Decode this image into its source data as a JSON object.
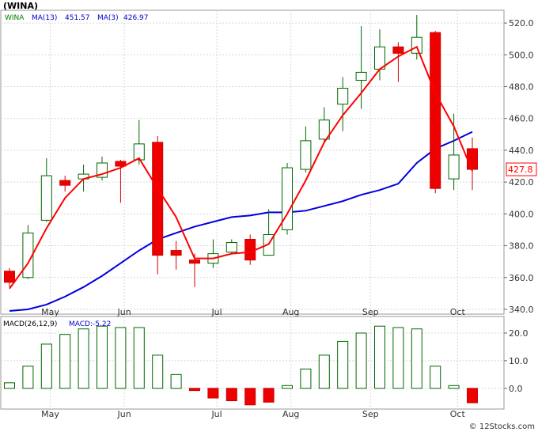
{
  "chart_data": [
    {
      "type": "candlestick",
      "title": "(WINA)",
      "legend": [
        {
          "label": "WINA",
          "color": "#008000"
        },
        {
          "label": "MA(13)",
          "value": "451.57",
          "color": "#0000cc"
        },
        {
          "label": "MA(3)",
          "value": "426.97",
          "color": "#0000cc"
        }
      ],
      "last_price_label": "427.8",
      "ylim": [
        337,
        528
      ],
      "y_ticks": [
        340,
        360,
        380,
        400,
        420,
        440,
        460,
        480,
        500,
        520
      ],
      "x_ticks": [
        {
          "label": "May",
          "index": 2.2
        },
        {
          "label": "Jun",
          "index": 6.2
        },
        {
          "label": "Jul",
          "index": 11.2
        },
        {
          "label": "Aug",
          "index": 15.2
        },
        {
          "label": "Sep",
          "index": 19.5
        },
        {
          "label": "Oct",
          "index": 24.2
        }
      ],
      "candles": [
        {
          "open": 364,
          "close": 357,
          "high": 366,
          "low": 354,
          "color": "red"
        },
        {
          "open": 360,
          "close": 388,
          "high": 393,
          "low": 359,
          "color": "green"
        },
        {
          "open": 396,
          "close": 424,
          "high": 435,
          "low": 395,
          "color": "green"
        },
        {
          "open": 421,
          "close": 418,
          "high": 424,
          "low": 414,
          "color": "red"
        },
        {
          "open": 422,
          "close": 425,
          "high": 431,
          "low": 414,
          "color": "green"
        },
        {
          "open": 423,
          "close": 432,
          "high": 436,
          "low": 421,
          "color": "green"
        },
        {
          "open": 433,
          "close": 430,
          "high": 434,
          "low": 407,
          "color": "red"
        },
        {
          "open": 434,
          "close": 444,
          "high": 459,
          "low": 431,
          "color": "green"
        },
        {
          "open": 445,
          "close": 374,
          "high": 449,
          "low": 362,
          "color": "red"
        },
        {
          "open": 377,
          "close": 374,
          "high": 383,
          "low": 365,
          "color": "red"
        },
        {
          "open": 371,
          "close": 369,
          "high": 375,
          "low": 354,
          "color": "red"
        },
        {
          "open": 369,
          "close": 375,
          "high": 384,
          "low": 366,
          "color": "green"
        },
        {
          "open": 376,
          "close": 382,
          "high": 384,
          "low": 375,
          "color": "green"
        },
        {
          "open": 384,
          "close": 371,
          "high": 387,
          "low": 368,
          "color": "red"
        },
        {
          "open": 374,
          "close": 387,
          "high": 403,
          "low": 374,
          "color": "green"
        },
        {
          "open": 390,
          "close": 429,
          "high": 432,
          "low": 387,
          "color": "green"
        },
        {
          "open": 428,
          "close": 446,
          "high": 455,
          "low": 426,
          "color": "green"
        },
        {
          "open": 447,
          "close": 459,
          "high": 467,
          "low": 445,
          "color": "green"
        },
        {
          "open": 469,
          "close": 479,
          "high": 486,
          "low": 452,
          "color": "green"
        },
        {
          "open": 484,
          "close": 489,
          "high": 518,
          "low": 466,
          "color": "green"
        },
        {
          "open": 491,
          "close": 505,
          "high": 516,
          "low": 484,
          "color": "green"
        },
        {
          "open": 505,
          "close": 501,
          "high": 508,
          "low": 483,
          "color": "red"
        },
        {
          "open": 501,
          "close": 511,
          "high": 525,
          "low": 497,
          "color": "green"
        },
        {
          "open": 514,
          "close": 416,
          "high": 515,
          "low": 413,
          "color": "red"
        },
        {
          "open": 422,
          "close": 437,
          "high": 463,
          "low": 415,
          "color": "green"
        },
        {
          "open": 441,
          "close": 428,
          "high": 448,
          "low": 415,
          "color": "red"
        }
      ],
      "ma13": [
        {
          "index": 0,
          "value": 339
        },
        {
          "index": 1,
          "value": 340
        },
        {
          "index": 2,
          "value": 343
        },
        {
          "index": 3,
          "value": 348
        },
        {
          "index": 4,
          "value": 354
        },
        {
          "index": 5,
          "value": 361
        },
        {
          "index": 6,
          "value": 369
        },
        {
          "index": 7,
          "value": 377
        },
        {
          "index": 8,
          "value": 384
        },
        {
          "index": 9,
          "value": 388
        },
        {
          "index": 10,
          "value": 392
        },
        {
          "index": 11,
          "value": 395
        },
        {
          "index": 12,
          "value": 398
        },
        {
          "index": 13,
          "value": 399
        },
        {
          "index": 14,
          "value": 401
        },
        {
          "index": 15,
          "value": 401
        },
        {
          "index": 16,
          "value": 402
        },
        {
          "index": 17,
          "value": 405
        },
        {
          "index": 18,
          "value": 408
        },
        {
          "index": 19,
          "value": 412
        },
        {
          "index": 20,
          "value": 415
        },
        {
          "index": 21,
          "value": 419
        },
        {
          "index": 22,
          "value": 432
        },
        {
          "index": 23,
          "value": 441
        },
        {
          "index": 24,
          "value": 446
        },
        {
          "index": 25,
          "value": 451.57
        }
      ],
      "ma3": [
        {
          "index": 0,
          "value": 353
        },
        {
          "index": 1,
          "value": 369
        },
        {
          "index": 2,
          "value": 391
        },
        {
          "index": 3,
          "value": 410
        },
        {
          "index": 4,
          "value": 422
        },
        {
          "index": 5,
          "value": 425
        },
        {
          "index": 6,
          "value": 429
        },
        {
          "index": 7,
          "value": 435
        },
        {
          "index": 8,
          "value": 416
        },
        {
          "index": 9,
          "value": 398
        },
        {
          "index": 10,
          "value": 372
        },
        {
          "index": 11,
          "value": 372
        },
        {
          "index": 12,
          "value": 375
        },
        {
          "index": 13,
          "value": 376
        },
        {
          "index": 14,
          "value": 381
        },
        {
          "index": 15,
          "value": 400
        },
        {
          "index": 16,
          "value": 421
        },
        {
          "index": 17,
          "value": 445
        },
        {
          "index": 18,
          "value": 462
        },
        {
          "index": 19,
          "value": 476
        },
        {
          "index": 20,
          "value": 491
        },
        {
          "index": 21,
          "value": 499
        },
        {
          "index": 22,
          "value": 505
        },
        {
          "index": 23,
          "value": 476
        },
        {
          "index": 24,
          "value": 455
        },
        {
          "index": 25,
          "value": 426.97
        }
      ]
    },
    {
      "type": "bar",
      "title": "MACD(26,12,9)",
      "legend": [
        {
          "label": "MACD(26,12,9)",
          "color": "#000000"
        },
        {
          "label": "MACD:-5.22",
          "color": "#0000cc"
        }
      ],
      "ylim": [
        -7.5,
        26
      ],
      "y_ticks": [
        {
          "value": 20,
          "label": "20.0"
        },
        {
          "value": 10,
          "label": "10.0"
        },
        {
          "value": 0,
          "label": "0.0"
        }
      ],
      "x_ticks": [
        {
          "label": "May",
          "index": 2.2
        },
        {
          "label": "Jun",
          "index": 6.2
        },
        {
          "label": "Jul",
          "index": 11.2
        },
        {
          "label": "Aug",
          "index": 15.2
        },
        {
          "label": "Sep",
          "index": 19.5
        },
        {
          "label": "Oct",
          "index": 24.2
        }
      ],
      "values": [
        2,
        8,
        16,
        19.5,
        21.5,
        22.5,
        22,
        22,
        12,
        5,
        -0.8,
        -3.5,
        -4.5,
        -6,
        -5,
        1,
        7,
        12,
        17,
        20,
        22.5,
        22,
        21.5,
        8,
        1,
        -5.22
      ]
    }
  ],
  "watermark": "© 12Stocks.com"
}
